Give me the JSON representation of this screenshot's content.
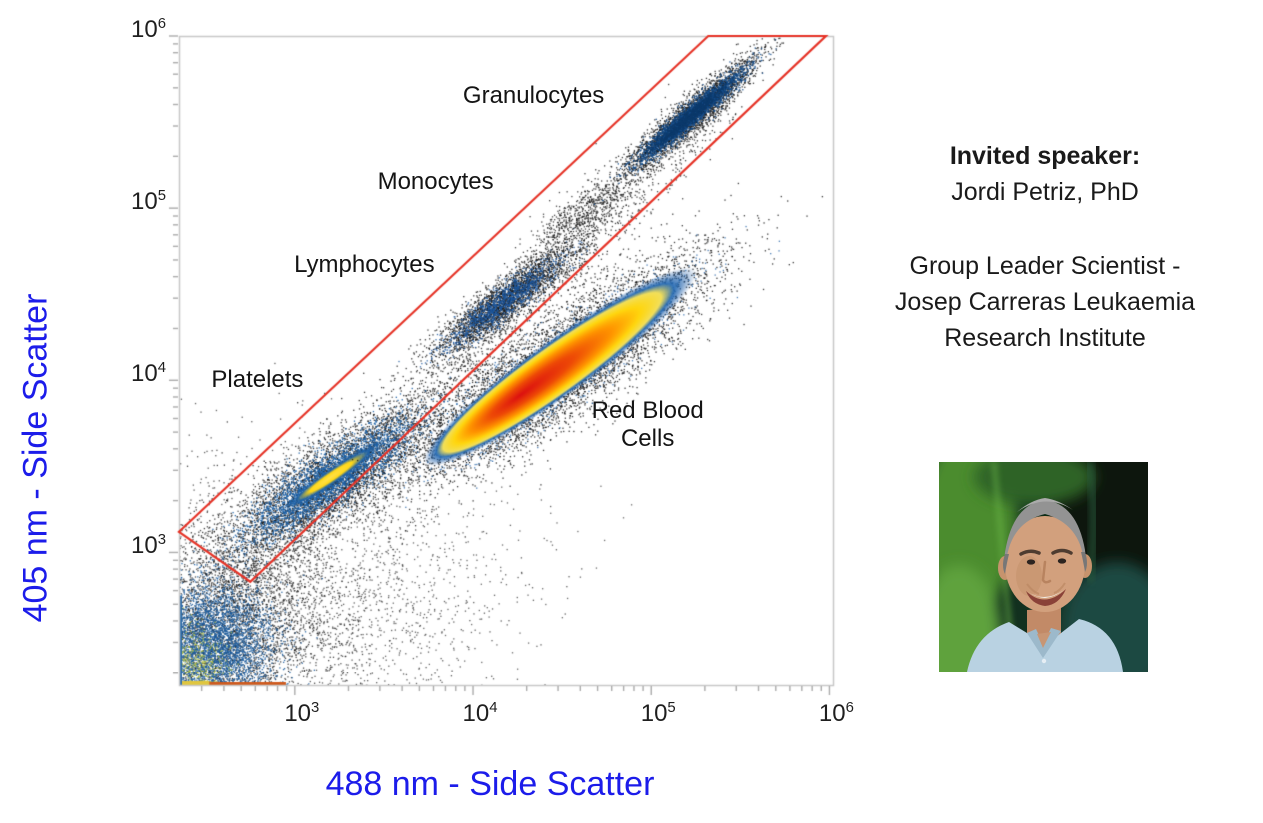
{
  "slide": {
    "background": "#ffffff"
  },
  "speaker": {
    "heading": "Invited speaker:",
    "name": "Jordi Petriz, PhD",
    "affiliation": [
      "Group Leader Scientist -",
      "Josep Carreras Leukaemia",
      "Research Institute"
    ]
  },
  "chart_data": {
    "type": "scatter",
    "subtype": "flow-cytometry-density-plot",
    "title": "",
    "xlabel": "488 nm - Side Scatter",
    "ylabel": "405 nm - Side Scatter",
    "axis_label_color": "#1c1cea",
    "x_scale": "log10",
    "y_scale": "log10",
    "x_range_log10": [
      2.35,
      6.02
    ],
    "y_range_log10": [
      2.23,
      6.0
    ],
    "x_tick_exponents": [
      3,
      4,
      5,
      6
    ],
    "y_tick_exponents": [
      3,
      4,
      5,
      6
    ],
    "grid": false,
    "legend": "none",
    "frame_color": "#c8c8c8",
    "tick_color": "#ababab",
    "tick_label_color": "#1f1f1f",
    "gate": {
      "name": "diagonal-singlets-gate",
      "color": "#e63327",
      "points_log10": [
        [
          2.35,
          3.12
        ],
        [
          5.32,
          6.0
        ],
        [
          5.98,
          6.0
        ],
        [
          2.75,
          2.83
        ]
      ]
    },
    "annotations": [
      {
        "id": "granulocytes",
        "text": "Granulocytes",
        "x_log10": 4.34,
        "y_log10": 5.65
      },
      {
        "id": "monocytes",
        "text": "Monocytes",
        "x_log10": 3.79,
        "y_log10": 5.15
      },
      {
        "id": "lymphocytes",
        "text": "Lymphocytes",
        "x_log10": 3.39,
        "y_log10": 4.67
      },
      {
        "id": "platelets",
        "text": "Platelets",
        "x_log10": 2.79,
        "y_log10": 4.0
      },
      {
        "id": "red-blood-cells",
        "text": "Red Blood\nCells",
        "x_log10": 4.98,
        "y_log10": 3.74
      }
    ],
    "populations": [
      {
        "name": "debris-corner",
        "angle_deg": 0,
        "layers": [
          {
            "kind": "dots",
            "color": "#1b1b1b",
            "alpha": 0.8,
            "n": 3200,
            "cx": 2.6,
            "cy": 2.55,
            "sx": 0.3,
            "sy": 0.3
          },
          {
            "kind": "dots",
            "color": "#1b1b1b",
            "alpha": 0.7,
            "n": 2400,
            "cx": 2.85,
            "cy": 2.72,
            "sx": 0.55,
            "sy": 0.42
          },
          {
            "kind": "dots",
            "color": "#1d5c9c",
            "alpha": 0.9,
            "n": 4200,
            "cx": 2.54,
            "cy": 2.47,
            "sx": 0.17,
            "sy": 0.18
          },
          {
            "kind": "dots",
            "color": "#b7c23a",
            "alpha": 0.8,
            "n": 450,
            "cx": 2.44,
            "cy": 2.36,
            "sx": 0.1,
            "sy": 0.1
          }
        ]
      },
      {
        "name": "diagonal-bridge",
        "angle_deg": 45,
        "layers": [
          {
            "kind": "band",
            "color": "#1b1b1b",
            "alpha": 0.8,
            "n": 1700,
            "x1": 2.62,
            "y1": 2.72,
            "x2": 5.4,
            "y2": 5.62,
            "sigma": 0.085
          }
        ]
      },
      {
        "name": "low-right-scatter",
        "angle_deg": 20,
        "layers": [
          {
            "kind": "dots",
            "color": "#1b1b1b",
            "alpha": 0.65,
            "n": 650,
            "cx": 3.35,
            "cy": 2.78,
            "sx": 0.55,
            "sy": 0.33
          }
        ]
      },
      {
        "name": "platelets",
        "angle_deg": 35.3,
        "layers": [
          {
            "kind": "dots",
            "color": "#171717",
            "alpha": 0.85,
            "n": 3600,
            "cx": 3.2,
            "cy": 3.42,
            "sx": 0.38,
            "sy": 0.115
          },
          {
            "kind": "dots",
            "color": "#1e62a8",
            "alpha": 0.95,
            "n": 3200,
            "cx": 3.2,
            "cy": 3.43,
            "sx": 0.29,
            "sy": 0.072
          },
          {
            "kind": "core",
            "cx": 3.22,
            "cy": 3.45,
            "rx": 0.36,
            "ry": 0.048,
            "fx": -0.1,
            "stops": [
              [
                0,
                "#ffe14d"
              ],
              [
                0.4,
                "#ffd818"
              ],
              [
                0.68,
                "rgba(30,98,168,0.85)"
              ],
              [
                1,
                "rgba(30,98,168,0)"
              ]
            ]
          }
        ]
      },
      {
        "name": "red-blood-cells",
        "angle_deg": 36.5,
        "layers": [
          {
            "kind": "dots",
            "color": "#171717",
            "alpha": 0.85,
            "n": 6500,
            "cx": 4.49,
            "cy": 4.08,
            "sx": 0.5,
            "sy": 0.135
          },
          {
            "kind": "dots",
            "color": "#1e5fa5",
            "alpha": 0.8,
            "n": 1600,
            "cx": 4.49,
            "cy": 4.08,
            "sx": 0.42,
            "sy": 0.1
          },
          {
            "kind": "core",
            "cx": 4.49,
            "cy": 4.08,
            "rx": 0.95,
            "ry": 0.16,
            "fx": -0.3,
            "stops": [
              [
                0,
                "#dc1010"
              ],
              [
                0.3,
                "#ee4a06"
              ],
              [
                0.52,
                "#ff9400"
              ],
              [
                0.68,
                "#ffd60e"
              ],
              [
                0.8,
                "#f2df5a"
              ],
              [
                0.87,
                "rgba(40,108,180,0.95)"
              ],
              [
                1,
                "rgba(30,90,165,0)"
              ]
            ]
          }
        ]
      },
      {
        "name": "lymphocytes",
        "angle_deg": 38.5,
        "layers": [
          {
            "kind": "dots",
            "color": "#171717",
            "alpha": 0.85,
            "n": 2600,
            "cx": 4.18,
            "cy": 4.47,
            "sx": 0.26,
            "sy": 0.055
          },
          {
            "kind": "dots",
            "color": "#1b57a0",
            "alpha": 0.85,
            "n": 1300,
            "cx": 4.16,
            "cy": 4.45,
            "sx": 0.2,
            "sy": 0.04
          }
        ]
      },
      {
        "name": "monocytes",
        "angle_deg": 40,
        "layers": [
          {
            "kind": "dots",
            "color": "#1b1b1b",
            "alpha": 0.8,
            "n": 620,
            "cx": 4.6,
            "cy": 4.96,
            "sx": 0.18,
            "sy": 0.06
          }
        ]
      },
      {
        "name": "granulocytes",
        "angle_deg": 41.6,
        "layers": [
          {
            "kind": "dots",
            "color": "#171717",
            "alpha": 0.85,
            "n": 2800,
            "cx": 5.22,
            "cy": 5.54,
            "sx": 0.25,
            "sy": 0.045
          },
          {
            "kind": "dots",
            "color": "#164f8e",
            "alpha": 0.95,
            "n": 2400,
            "cx": 5.22,
            "cy": 5.54,
            "sx": 0.2,
            "sy": 0.028
          },
          {
            "kind": "dots",
            "color": "#0d3a6b",
            "alpha": 0.95,
            "n": 1200,
            "cx": 5.21,
            "cy": 5.53,
            "sx": 0.15,
            "sy": 0.018
          }
        ]
      }
    ],
    "pileup_strips": [
      {
        "edge": "bottom",
        "from_log10": 2.35,
        "to_log10": 2.95,
        "color": "#cf5a1d",
        "thickness": 3
      },
      {
        "edge": "bottom",
        "from_log10": 2.35,
        "to_log10": 2.52,
        "color": "#e0c63e",
        "thickness": 4
      },
      {
        "edge": "left",
        "from_log10": 2.23,
        "to_log10": 2.75,
        "color": "#2d6ca8",
        "thickness": 3
      }
    ]
  }
}
